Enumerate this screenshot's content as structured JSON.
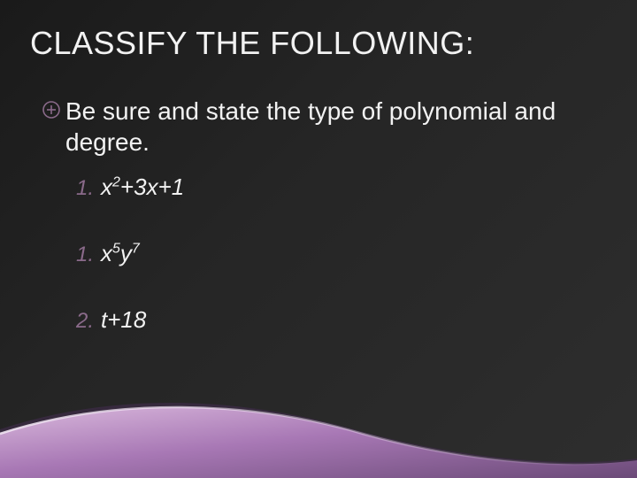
{
  "slide": {
    "background_gradient": [
      "#1a1a1a",
      "#252525",
      "#2e2e2e"
    ],
    "text_color": "#f2f2f2",
    "title": "CLASSIFY THE FOLLOWING:",
    "title_fontsize": 36,
    "bullet": {
      "icon_name": "plus-circle-icon",
      "icon_color": "#8a6a8a",
      "text": "Be sure and state the type of polynomial and degree.",
      "fontsize": 28
    },
    "items": [
      {
        "number": "1.",
        "number_color": "#8a6a8a",
        "expression_html": "x<sup>2</sup>+3x+1"
      },
      {
        "number": "1.",
        "number_color": "#8a6a8a",
        "expression_html": "x<sup>5</sup>y<sup>7</sup>"
      },
      {
        "number": "2.",
        "number_color": "#8a6a8a",
        "expression_html": "t+18"
      }
    ],
    "item_fontsize": 26,
    "swoosh": {
      "fill_gradient": [
        "#d9b8dc",
        "#a878b5",
        "#6b4a78"
      ],
      "highlight": "#f2e6f4",
      "shadow": "#3a2a42"
    }
  }
}
